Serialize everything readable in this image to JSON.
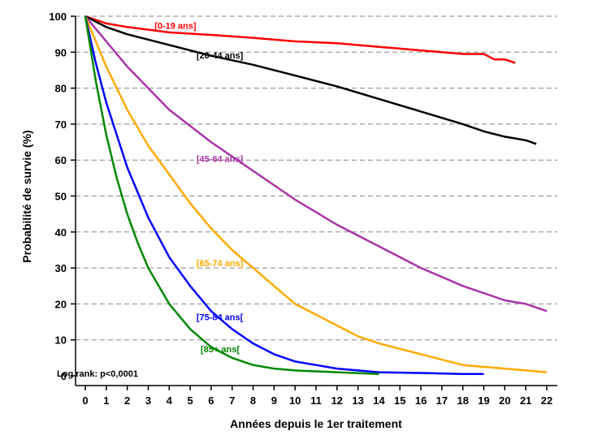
{
  "chart_data": {
    "type": "line",
    "title": "",
    "xlabel": "Années depuis le 1er traitement",
    "ylabel": "Probabilité de survie (%)",
    "xlim": [
      0,
      22
    ],
    "ylim": [
      0,
      100
    ],
    "x_ticks": [
      "0",
      "1",
      "2",
      "3",
      "4",
      "5",
      "6",
      "7",
      "8",
      "9",
      "10",
      "11",
      "12",
      "13",
      "14",
      "15",
      "16",
      "17",
      "18",
      "19",
      "20",
      "21",
      "22"
    ],
    "y_ticks": [
      "0",
      "10",
      "20",
      "30",
      "40",
      "50",
      "60",
      "70",
      "80",
      "90",
      "100"
    ],
    "grid": "horizontal dashed",
    "annotation": "Log rank: p<0,0001",
    "series": [
      {
        "name": "[0-19 ans]",
        "color": "#ff0000",
        "x": [
          0,
          1,
          2,
          4,
          6,
          8,
          10,
          12,
          14,
          15,
          16,
          17,
          18,
          19,
          19.5,
          20,
          20.5
        ],
        "y": [
          100,
          98,
          97,
          95.5,
          94.8,
          94,
          93,
          92.5,
          91.5,
          91,
          90.5,
          90,
          89.5,
          89.5,
          88,
          88,
          87
        ]
      },
      {
        "name": "[20-44 ans]",
        "color": "#000000",
        "x": [
          0,
          1,
          2,
          4,
          6,
          8,
          10,
          12,
          14,
          16,
          18,
          19,
          20,
          21,
          21.5
        ],
        "y": [
          100,
          97,
          95,
          92,
          89,
          86.5,
          83.5,
          80.5,
          77,
          73.5,
          70,
          68,
          66.5,
          65.5,
          64.5
        ]
      },
      {
        "name": "[45-64 ans]",
        "color": "#aa33aa",
        "x": [
          0,
          1,
          2,
          3,
          4,
          6,
          8,
          10,
          12,
          14,
          16,
          18,
          20,
          21,
          22
        ],
        "y": [
          100,
          93,
          86,
          80,
          74,
          65,
          57,
          49,
          42,
          36,
          30,
          25,
          21,
          20,
          18
        ]
      },
      {
        "name": "[65-74 ans]",
        "color": "#ffaa00",
        "x": [
          0,
          1,
          2,
          3,
          4,
          5,
          6,
          7,
          8,
          9,
          10,
          11,
          12,
          13,
          14,
          16,
          18,
          20,
          22
        ],
        "y": [
          100,
          86,
          74,
          64,
          56,
          48,
          41,
          35,
          30,
          25,
          20,
          17,
          14,
          11,
          9,
          6,
          3,
          2,
          1
        ]
      },
      {
        "name": "[75-84 ans[",
        "color": "#0000ff",
        "x": [
          0,
          0.5,
          1,
          2,
          3,
          4,
          5,
          6,
          7,
          8,
          9,
          10,
          11,
          12,
          13,
          14,
          16,
          18,
          19
        ],
        "y": [
          100,
          87,
          76,
          58,
          44,
          33,
          25,
          18,
          13,
          9,
          6,
          4,
          3,
          2,
          1.5,
          1,
          0.8,
          0.5,
          0.5
        ]
      },
      {
        "name": "[85+ ans[",
        "color": "#008800",
        "x": [
          0,
          0.5,
          1,
          1.5,
          2,
          2.5,
          3,
          4,
          5,
          6,
          7,
          8,
          9,
          10,
          12,
          14
        ],
        "y": [
          100,
          82,
          67,
          55,
          45,
          37,
          30,
          20,
          13,
          8,
          5,
          3,
          2,
          1.5,
          1,
          0.5
        ]
      }
    ]
  }
}
